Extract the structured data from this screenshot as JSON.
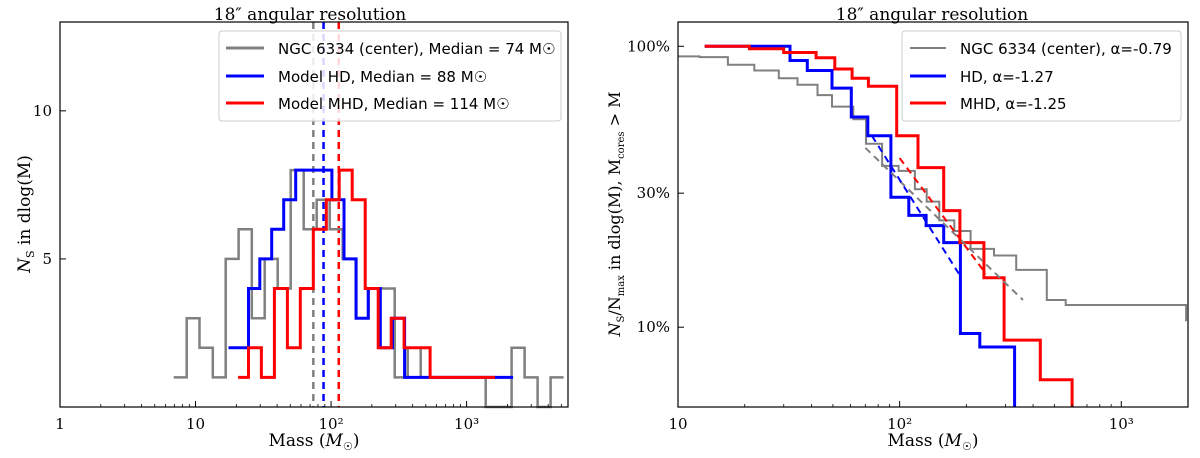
{
  "chart_data": [
    {
      "type": "step",
      "title": "18″ angular resolution",
      "xlabel": "Mass (M☉)",
      "ylabel": "N_S in dlog(M)",
      "xscale": "log",
      "xlim": [
        1,
        5600
      ],
      "ylim": [
        0,
        13
      ],
      "xticks": [
        {
          "value": 1,
          "label": "1"
        },
        {
          "value": 10,
          "label": "10"
        },
        {
          "value": 100,
          "label": "10²"
        },
        {
          "value": 1000,
          "label": "10³"
        }
      ],
      "yticks": [
        {
          "value": 5,
          "label": "5"
        },
        {
          "value": 10,
          "label": "10"
        }
      ],
      "legend_position": "top-right",
      "series": [
        {
          "name": "NGC 6334 (center), Median = 74 M☉",
          "color": "#808080",
          "edges": [
            6.9,
            8.6,
            10.7,
            13.4,
            16.7,
            20.8,
            26.0,
            32.4,
            40.4,
            50.4,
            62.8,
            78.3,
            97.7,
            121.8,
            151.9,
            189.4,
            236.2,
            294.6,
            367.4,
            458.2,
            571.4,
            712.6,
            888.7,
            1108.4,
            1382.3,
            1723.9,
            2149.9,
            2681.2,
            3343.8,
            4170.2,
            5200.8
          ],
          "values": [
            1,
            3,
            2,
            1,
            5,
            6,
            3,
            5,
            4,
            8,
            6,
            7,
            6,
            5,
            3,
            4,
            4,
            1,
            2,
            1,
            1,
            1,
            1,
            1,
            0,
            0,
            2,
            1,
            0,
            1
          ]
        },
        {
          "name": "Model HD, Median = 88 M☉",
          "color": "#0000ff",
          "edges": [
            17.5,
            24.6,
            29.8,
            36.5,
            44.7,
            54.8,
            67.2,
            82.5,
            101.5,
            124.6,
            153.0,
            188.0,
            231.0,
            283.9,
            348.6,
            428.0,
            525.3,
            645.0,
            792.0,
            972.0,
            1193.0,
            1464.0,
            1797.0,
            2205.0
          ],
          "values": [
            2,
            4,
            5,
            6,
            7,
            8,
            8,
            8,
            7,
            5,
            3,
            4,
            2,
            3,
            1,
            1,
            1,
            1,
            1,
            1,
            1,
            1,
            1
          ]
        },
        {
          "name": "Model MHD, Median = 114 M☉",
          "color": "#ff0000",
          "edges": [
            20.6,
            24.6,
            30.6,
            38.2,
            47.6,
            59.3,
            73.9,
            92.2,
            114.9,
            143.3,
            178.6,
            222.7,
            277.6,
            346.1,
            431.5,
            538.0,
            670.7,
            836.2,
            1042.5,
            1299.8,
            1620.5
          ],
          "values": [
            1,
            2,
            1,
            4,
            2,
            4,
            6,
            7,
            8,
            7,
            4,
            2,
            3,
            2,
            2,
            1,
            1,
            1,
            1,
            1
          ]
        }
      ],
      "medians": [
        {
          "value": 74,
          "color": "#808080"
        },
        {
          "value": 88,
          "color": "#0000ff"
        },
        {
          "value": 114,
          "color": "#ff0000"
        }
      ]
    },
    {
      "type": "step",
      "title": "18″ angular resolution",
      "xlabel": "Mass (M☉)",
      "ylabel": "N_S/N_max in dlog(M), M_cores > M",
      "xscale": "log",
      "yscale": "log",
      "xlim": [
        10,
        2000
      ],
      "ylim": [
        0.052,
        1.22
      ],
      "xticks": [
        {
          "value": 10,
          "label": "10"
        },
        {
          "value": 100,
          "label": "10²"
        },
        {
          "value": 1000,
          "label": "10³"
        }
      ],
      "yticks": [
        {
          "value": 0.1,
          "label": "10%"
        },
        {
          "value": 0.3,
          "label": "30%"
        },
        {
          "value": 1.0,
          "label": "100%"
        }
      ],
      "legend_position": "top-right",
      "series": [
        {
          "name": "NGC 6334 (center), α=-0.79",
          "color": "#808080",
          "x": [
            10,
            12.5,
            16.8,
            22.1,
            28.5,
            34.6,
            42.6,
            49.5,
            61.8,
            70.5,
            83.3,
            98.9,
            117.2,
            132.5,
            151.0,
            176.5,
            209.1,
            266.5,
            335.5,
            461.5,
            561.6,
            1825.0,
            1960.0
          ],
          "y": [
            0.92,
            0.915,
            0.86,
            0.82,
            0.77,
            0.73,
            0.67,
            0.61,
            0.55,
            0.45,
            0.375,
            0.36,
            0.31,
            0.28,
            0.24,
            0.22,
            0.19,
            0.18,
            0.16,
            0.125,
            0.12,
            0.12,
            0.105
          ]
        },
        {
          "name": "HD, α=-1.27",
          "color": "#0000ff",
          "x": [
            13.2,
            25.5,
            32.0,
            38.3,
            49.5,
            60.5,
            71.8,
            91.3,
            110.0,
            131.7,
            158.0,
            188.0,
            230.0,
            330.0
          ],
          "y": [
            1.0,
            1.0,
            0.89,
            0.82,
            0.71,
            0.56,
            0.48,
            0.29,
            0.25,
            0.23,
            0.2,
            0.095,
            0.085,
            0.052
          ]
        },
        {
          "name": "MHD, α=-1.25",
          "color": "#ff0000",
          "x": [
            13.2,
            21.0,
            30.0,
            42.0,
            51.0,
            61.0,
            72.3,
            97.0,
            121.0,
            158.0,
            187.0,
            240.0,
            296.0,
            431.0,
            600.0
          ],
          "y": [
            1.0,
            0.98,
            0.95,
            0.91,
            0.83,
            0.77,
            0.72,
            0.48,
            0.37,
            0.26,
            0.2,
            0.15,
            0.09,
            0.065,
            0.052
          ]
        }
      ],
      "fits": [
        {
          "color": "#808080",
          "x": [
            70,
            360
          ],
          "y": [
            0.435,
            0.125
          ]
        },
        {
          "color": "#0000ff",
          "x": [
            75,
            185
          ],
          "y": [
            0.48,
            0.155
          ]
        },
        {
          "color": "#ff0000",
          "x": [
            100,
            245
          ],
          "y": [
            0.4,
            0.155
          ]
        }
      ]
    }
  ]
}
